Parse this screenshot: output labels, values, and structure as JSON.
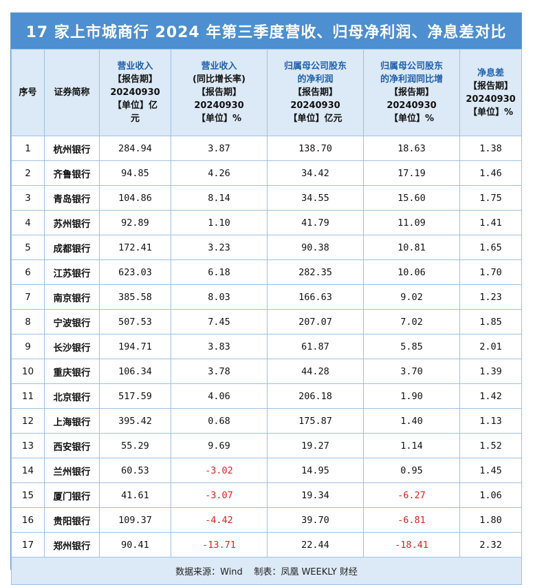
{
  "title": "17 家上市城商行 2024 年第三季度营收、归母净利润、净息差对比",
  "headers": [
    {
      "blue": [],
      "dark": [
        "序号"
      ]
    },
    {
      "blue": [],
      "dark": [
        "证券简称"
      ]
    },
    {
      "blue": [
        "营业收入"
      ],
      "dark": [
        "【报告期】",
        "20240930",
        "【单位】亿",
        "元"
      ]
    },
    {
      "blue": [
        "营业收入"
      ],
      "dark": [
        "(同比增长率)",
        "【报告期】",
        "20240930",
        "【单位】%"
      ]
    },
    {
      "blue": [
        "归属母公司股东",
        "的净利润"
      ],
      "dark": [
        "【报告期】",
        "20240930",
        "【单位】亿元"
      ]
    },
    {
      "blue": [
        "归属母公司股东",
        "的净利润同比增"
      ],
      "dark": [
        "【报告期】",
        "20240930",
        "【单位】%"
      ]
    },
    {
      "blue": [
        "净息差"
      ],
      "dark": [
        "【报告期】",
        "20240930",
        "【单位】%"
      ]
    }
  ],
  "rows": [
    [
      "1",
      "杭州银行",
      "284.94",
      "3.87",
      "138.70",
      "18.63",
      "1.38"
    ],
    [
      "2",
      "齐鲁银行",
      "94.85",
      "4.26",
      "34.42",
      "17.19",
      "1.46"
    ],
    [
      "3",
      "青岛银行",
      "104.86",
      "8.14",
      "34.55",
      "15.60",
      "1.75"
    ],
    [
      "4",
      "苏州银行",
      "92.89",
      "1.10",
      "41.79",
      "11.09",
      "1.41"
    ],
    [
      "5",
      "成都银行",
      "172.41",
      "3.23",
      "90.38",
      "10.81",
      "1.65"
    ],
    [
      "6",
      "江苏银行",
      "623.03",
      "6.18",
      "282.35",
      "10.06",
      "1.70"
    ],
    [
      "7",
      "南京银行",
      "385.58",
      "8.03",
      "166.63",
      "9.02",
      "1.23"
    ],
    [
      "8",
      "宁波银行",
      "507.53",
      "7.45",
      "207.07",
      "7.02",
      "1.85"
    ],
    [
      "9",
      "长沙银行",
      "194.71",
      "3.83",
      "61.87",
      "5.85",
      "2.01"
    ],
    [
      "10",
      "重庆银行",
      "106.34",
      "3.78",
      "44.28",
      "3.70",
      "1.39"
    ],
    [
      "11",
      "北京银行",
      "517.59",
      "4.06",
      "206.18",
      "1.90",
      "1.42"
    ],
    [
      "12",
      "上海银行",
      "395.42",
      "0.68",
      "175.87",
      "1.40",
      "1.13"
    ],
    [
      "13",
      "西安银行",
      "55.29",
      "9.69",
      "19.27",
      "1.14",
      "1.52"
    ],
    [
      "14",
      "兰州银行",
      "60.53",
      "-3.02",
      "14.95",
      "0.95",
      "1.45"
    ],
    [
      "15",
      "厦门银行",
      "41.61",
      "-3.07",
      "19.34",
      "-6.27",
      "1.06"
    ],
    [
      "16",
      "贵阳银行",
      "109.37",
      "-4.42",
      "39.70",
      "-6.81",
      "1.80"
    ],
    [
      "17",
      "郑州银行",
      "90.41",
      "-13.71",
      "22.44",
      "-18.41",
      "2.32"
    ]
  ],
  "footer": "数据来源：Wind    制表：凤凰 WEEKLY 财经",
  "colors": {
    "title_bg": "#4d8fd0",
    "header_bg": "#dce9f6",
    "header_blue_text": "#1f5fae",
    "negative": "#e02020"
  }
}
